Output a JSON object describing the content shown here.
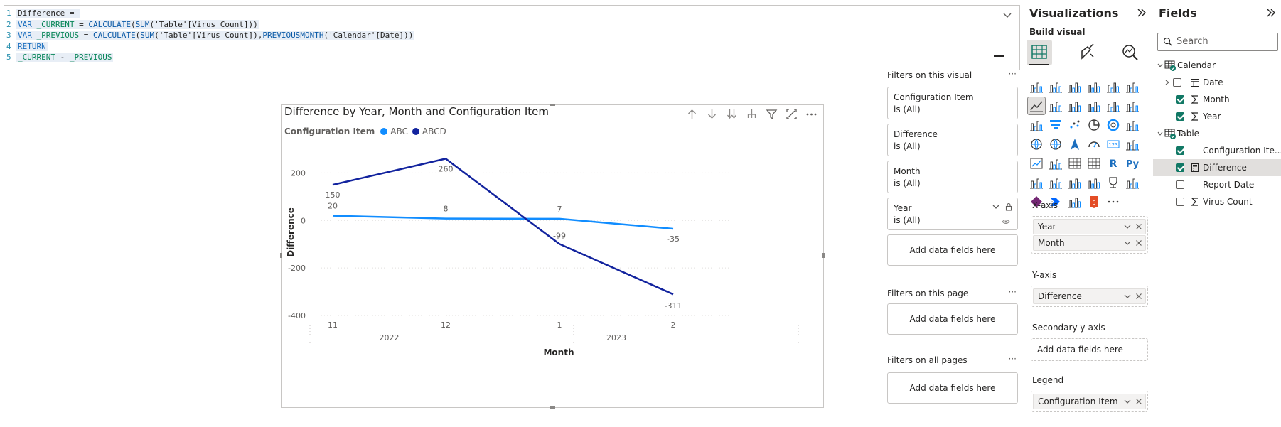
{
  "dax": {
    "lines": [
      {
        "n": "1",
        "parts": [
          {
            "t": "Difference = ",
            "c": ""
          }
        ]
      },
      {
        "n": "2",
        "parts": [
          {
            "t": "VAR ",
            "c": "kw"
          },
          {
            "t": "_CURRENT",
            "c": "var"
          },
          {
            "t": " = ",
            "c": ""
          },
          {
            "t": "CALCULATE",
            "c": "fn"
          },
          {
            "t": "(",
            "c": ""
          },
          {
            "t": "SUM",
            "c": "fn"
          },
          {
            "t": "('Table'[Virus Count]))",
            "c": ""
          }
        ]
      },
      {
        "n": "3",
        "parts": [
          {
            "t": "VAR ",
            "c": "kw"
          },
          {
            "t": "_PREVIOUS",
            "c": "var"
          },
          {
            "t": " = ",
            "c": ""
          },
          {
            "t": "CALCULATE",
            "c": "fn"
          },
          {
            "t": "(",
            "c": ""
          },
          {
            "t": "SUM",
            "c": "fn"
          },
          {
            "t": "('Table'[Virus Count]),",
            "c": ""
          },
          {
            "t": "PREVIOUSMONTH",
            "c": "fn"
          },
          {
            "t": "('Calendar'[Date]))",
            "c": ""
          }
        ]
      },
      {
        "n": "4",
        "parts": [
          {
            "t": "RETURN",
            "c": "kw"
          }
        ]
      },
      {
        "n": "5",
        "parts": [
          {
            "t": "_CURRENT",
            "c": "var"
          },
          {
            "t": " - ",
            "c": ""
          },
          {
            "t": "_PREVIOUS",
            "c": "var"
          }
        ]
      }
    ]
  },
  "visual": {
    "title": "Difference by Year, Month and Configuration Item",
    "legend_title": "Configuration Item",
    "legend_items": [
      {
        "name": "ABC",
        "color": "#118dff"
      },
      {
        "name": "ABCD",
        "color": "#12239e"
      }
    ]
  },
  "chart_data": {
    "type": "line",
    "title": "Difference by Year, Month and Configuration Item",
    "xlabel": "Month",
    "ylabel": "Difference",
    "categories": [
      "11",
      "12",
      "1",
      "2"
    ],
    "category_groups": [
      {
        "label": "2022",
        "span": [
          "11",
          "12"
        ]
      },
      {
        "label": "2023",
        "span": [
          "1",
          "2"
        ]
      }
    ],
    "ylim": [
      -400,
      300
    ],
    "yticks": [
      {
        "value": 200,
        "label": "200"
      },
      {
        "value": 0,
        "label": "0"
      },
      {
        "value": -200,
        "label": "-200"
      },
      {
        "value": -400,
        "label": "-400"
      }
    ],
    "grid": true,
    "legend": "top-left",
    "series": [
      {
        "name": "ABC",
        "color": "#118dff",
        "values": [
          20,
          8,
          7,
          -35
        ],
        "labels": [
          "20",
          "8",
          "7",
          "-35"
        ]
      },
      {
        "name": "ABCD",
        "color": "#12239e",
        "values": [
          150,
          260,
          -99,
          -311
        ],
        "labels": [
          "150",
          "260",
          "-99",
          "-311"
        ]
      }
    ]
  },
  "filters": {
    "on_visual_title": "Filters on this visual",
    "on_page_title": "Filters on this page",
    "on_all_title": "Filters on all pages",
    "more": "···",
    "cards": [
      {
        "name": "Configuration Item",
        "value": "is (All)"
      },
      {
        "name": "Difference",
        "value": "is (All)"
      },
      {
        "name": "Month",
        "value": "is (All)"
      },
      {
        "name": "Year",
        "value": "is (All)"
      }
    ],
    "add_label": "Add data fields here"
  },
  "viz": {
    "title": "Visualizations",
    "build_label": "Build visual",
    "more_label": "···",
    "wells": [
      {
        "label": "X-axis",
        "fields": [
          "Year",
          "Month"
        ]
      },
      {
        "label": "Y-axis",
        "fields": [
          "Difference"
        ]
      },
      {
        "label": "Secondary y-axis",
        "fields": [],
        "empty": "Add data fields here"
      },
      {
        "label": "Legend",
        "fields": [
          "Configuration Item"
        ]
      }
    ]
  },
  "fields": {
    "title": "Fields",
    "search_placeholder": "Search",
    "tables": [
      {
        "name": "Calendar",
        "items": [
          {
            "name": "Date",
            "checked": false,
            "icon": "calendar-icon",
            "expand": true
          },
          {
            "name": "Month",
            "checked": true,
            "icon": "sigma-icon"
          },
          {
            "name": "Year",
            "checked": true,
            "icon": "sigma-icon"
          }
        ]
      },
      {
        "name": "Table",
        "items": [
          {
            "name": "Configuration Ite...",
            "checked": true,
            "icon": ""
          },
          {
            "name": "Difference",
            "checked": true,
            "icon": "calculator-icon",
            "selected": true
          },
          {
            "name": "Report Date",
            "checked": false,
            "icon": ""
          },
          {
            "name": "Virus Count",
            "checked": false,
            "icon": "sigma-icon"
          }
        ]
      }
    ]
  }
}
